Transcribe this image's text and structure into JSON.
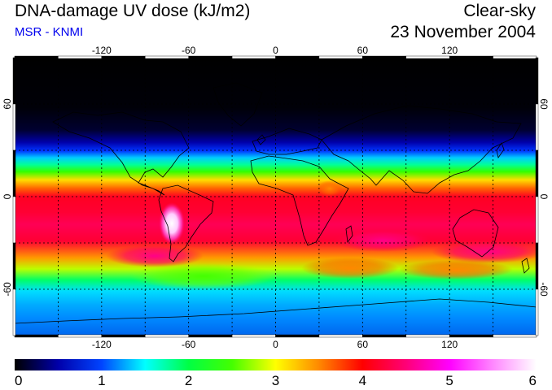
{
  "header": {
    "title": "DNA-damage UV dose (kJ/m2)",
    "subtitle": "MSR - KNMI",
    "mode": "Clear-sky",
    "date": "23 November 2004"
  },
  "map": {
    "lon_ticks": [
      -120,
      -60,
      0,
      60,
      120
    ],
    "lon_tick_labels": [
      "-120",
      "-60",
      "0",
      "60",
      "120"
    ],
    "lat_ticks": [
      60,
      0,
      -60
    ],
    "lat_tick_labels": [
      "60",
      "0",
      "-60"
    ],
    "lon_range": [
      -180,
      180
    ],
    "lat_range": [
      -90,
      90
    ],
    "gridlines": "dashed every 30 degrees"
  },
  "colorbar": {
    "min": 0,
    "max": 6,
    "tick_labels": [
      "0",
      "1",
      "2",
      "3",
      "4",
      "5",
      "6"
    ],
    "colors": [
      "#000000",
      "#0000aa",
      "#0044ff",
      "#00ffff",
      "#00ff44",
      "#44ff00",
      "#ffff00",
      "#ff8800",
      "#ff0000",
      "#ff0077",
      "#ff00ff",
      "#ff88ff",
      "#ffffff"
    ]
  }
}
